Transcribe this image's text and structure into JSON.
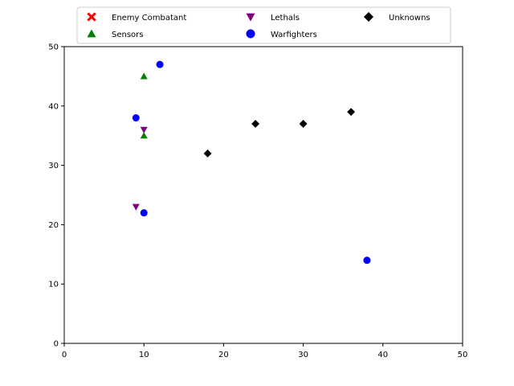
{
  "chart_data": {
    "type": "scatter",
    "title": "",
    "xlabel": "",
    "ylabel": "",
    "xlim": [
      0,
      50
    ],
    "ylim": [
      0,
      50
    ],
    "xticks": [
      0,
      10,
      20,
      30,
      40,
      50
    ],
    "yticks": [
      0,
      10,
      20,
      30,
      40,
      50
    ],
    "grid": false,
    "legend_position": "top-center",
    "series": [
      {
        "name": "Enemy Combatant",
        "marker": "x",
        "color": "#ff0000",
        "points": []
      },
      {
        "name": "Sensors",
        "marker": "triangle-up",
        "color": "#008000",
        "points": [
          [
            10,
            45
          ],
          [
            10,
            35
          ]
        ]
      },
      {
        "name": "Lethals",
        "marker": "triangle-down",
        "color": "#800080",
        "points": [
          [
            10,
            36
          ],
          [
            9,
            23
          ]
        ]
      },
      {
        "name": "Warfighters",
        "marker": "circle",
        "color": "#0000ff",
        "points": [
          [
            12,
            47
          ],
          [
            9,
            38
          ],
          [
            10,
            22
          ],
          [
            38,
            14
          ]
        ]
      },
      {
        "name": "Unknowns",
        "marker": "diamond",
        "color": "#000000",
        "points": [
          [
            18,
            32
          ],
          [
            24,
            37
          ],
          [
            30,
            37
          ],
          [
            36,
            39
          ]
        ]
      }
    ]
  }
}
